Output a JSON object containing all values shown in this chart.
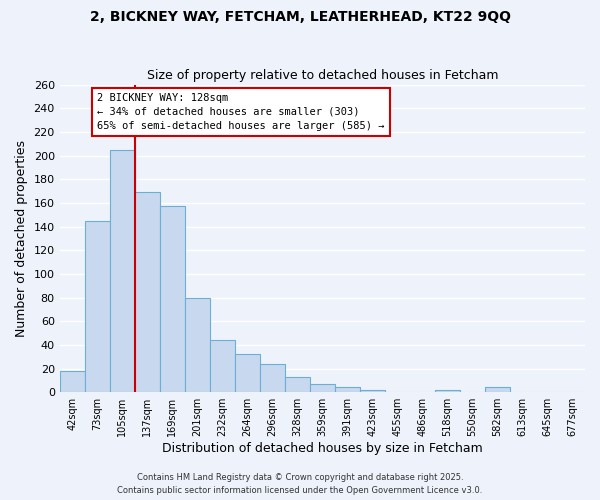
{
  "title": "2, BICKNEY WAY, FETCHAM, LEATHERHEAD, KT22 9QQ",
  "subtitle": "Size of property relative to detached houses in Fetcham",
  "xlabel": "Distribution of detached houses by size in Fetcham",
  "ylabel": "Number of detached properties",
  "bin_labels": [
    "42sqm",
    "73sqm",
    "105sqm",
    "137sqm",
    "169sqm",
    "201sqm",
    "232sqm",
    "264sqm",
    "296sqm",
    "328sqm",
    "359sqm",
    "391sqm",
    "423sqm",
    "455sqm",
    "486sqm",
    "518sqm",
    "550sqm",
    "582sqm",
    "613sqm",
    "645sqm",
    "677sqm"
  ],
  "bar_values": [
    18,
    145,
    205,
    169,
    157,
    80,
    44,
    32,
    24,
    13,
    7,
    4,
    2,
    0,
    0,
    2,
    0,
    4,
    0,
    0,
    0
  ],
  "bar_color": "#c8d9ef",
  "bar_edge_color": "#6baed6",
  "vline_color": "#cc0000",
  "vline_pos": 3.0,
  "annotation_title": "2 BICKNEY WAY: 128sqm",
  "annotation_line1": "← 34% of detached houses are smaller (303)",
  "annotation_line2": "65% of semi-detached houses are larger (585) →",
  "annotation_box_color": "#ffffff",
  "annotation_box_edge": "#cc0000",
  "ylim": [
    0,
    260
  ],
  "yticks": [
    0,
    20,
    40,
    60,
    80,
    100,
    120,
    140,
    160,
    180,
    200,
    220,
    240,
    260
  ],
  "footer1": "Contains HM Land Registry data © Crown copyright and database right 2025.",
  "footer2": "Contains public sector information licensed under the Open Government Licence v3.0.",
  "bg_color": "#eef2fa",
  "grid_color": "#ffffff"
}
